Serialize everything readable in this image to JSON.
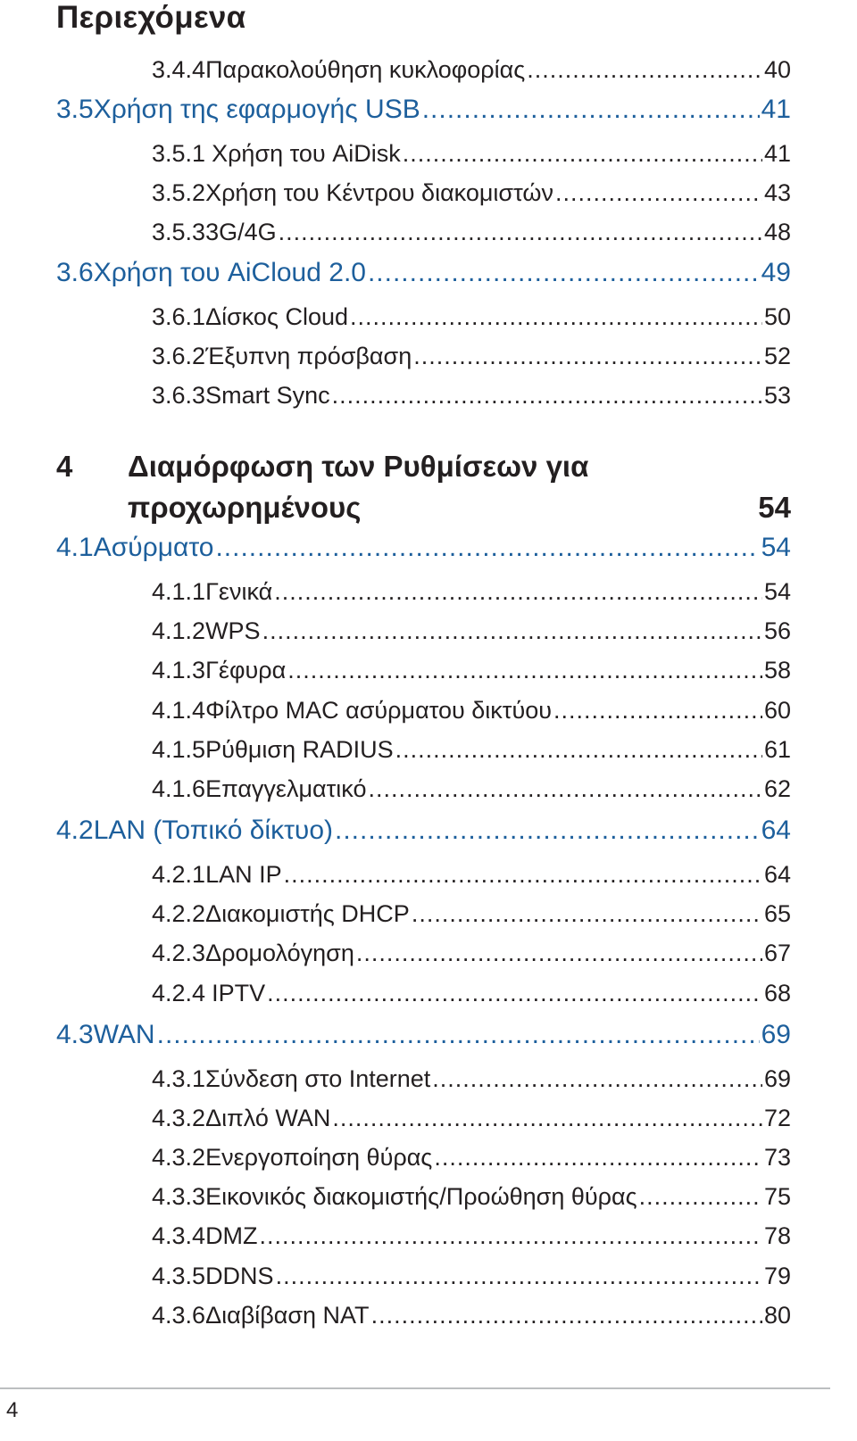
{
  "heading": "Περιεχόμενα",
  "entries": [
    {
      "level": "sub",
      "number": "3.4.4",
      "title": "Παρακολούθηση κυκλοφορίας",
      "page": "40"
    },
    {
      "level": "sec",
      "number": "3.5",
      "title": "Χρήση της εφαρμογής USB",
      "page": "41"
    },
    {
      "level": "sub",
      "number": "3.5.1",
      "title": "Χρήση του AiDisk",
      "page": "41"
    },
    {
      "level": "sub",
      "number": "3.5.2",
      "title": "Χρήση του Κέντρου διακομιστών",
      "page": "43"
    },
    {
      "level": "sub",
      "number": "3.5.3",
      "title": "3G/4G",
      "page": "48"
    },
    {
      "level": "sec",
      "number": "3.6",
      "title": "Χρήση του AiCloud 2.0",
      "page": "49"
    },
    {
      "level": "sub",
      "number": "3.6.1",
      "title": "Δίσκος Cloud",
      "page": "50"
    },
    {
      "level": "sub",
      "number": "3.6.2",
      "title": "Έξυπνη πρόσβαση",
      "page": "52"
    },
    {
      "level": "sub",
      "number": "3.6.3",
      "title": "Smart Sync",
      "page": "53"
    },
    {
      "level": "sec",
      "number": "4.1",
      "title": "Ασύρματο",
      "page": "54"
    },
    {
      "level": "sub",
      "number": "4.1.1",
      "title": "Γενικά",
      "page": "54"
    },
    {
      "level": "sub",
      "number": "4.1.2",
      "title": "WPS",
      "page": "56"
    },
    {
      "level": "sub",
      "number": "4.1.3",
      "title": "Γέφυρα",
      "page": "58"
    },
    {
      "level": "sub",
      "number": "4.1.4",
      "title": "Φίλτρο MAC ασύρματου δικτύου",
      "page": "60"
    },
    {
      "level": "sub",
      "number": "4.1.5",
      "title": "Ρύθμιση RADIUS",
      "page": "61"
    },
    {
      "level": "sub",
      "number": "4.1.6",
      "title": "Επαγγελματικό",
      "page": "62"
    },
    {
      "level": "sec",
      "number": "4.2",
      "title": "LAN (Τοπικό δίκτυο)",
      "page": "64"
    },
    {
      "level": "sub",
      "number": "4.2.1",
      "title": "LAN IP",
      "page": "64"
    },
    {
      "level": "sub",
      "number": "4.2.2",
      "title": "Διακομιστής DHCP",
      "page": "65"
    },
    {
      "level": "sub",
      "number": "4.2.3",
      "title": "Δρομολόγηση ",
      "page": "67"
    },
    {
      "level": "sub",
      "number": "4.2.4",
      "title": "IPTV",
      "page": "68"
    },
    {
      "level": "sec",
      "number": "4.3",
      "title": "WAN",
      "page": "69"
    },
    {
      "level": "sub",
      "number": "4.3.1",
      "title": "Σύνδεση στο Internet",
      "page": "69"
    },
    {
      "level": "sub",
      "number": "4.3.2",
      "title": "Διπλό WAN",
      "page": "72"
    },
    {
      "level": "sub",
      "number": "4.3.2",
      "title": "Ενεργοποίηση θύρας",
      "page": "73"
    },
    {
      "level": "sub",
      "number": "4.3.3",
      "title": "Εικονικός διακομιστής/Προώθηση θύρας",
      "page": "75"
    },
    {
      "level": "sub",
      "number": "4.3.4",
      "title": "DMZ",
      "page": "78"
    },
    {
      "level": "sub",
      "number": "4.3.5",
      "title": "DDNS",
      "page": "79"
    },
    {
      "level": "sub",
      "number": "4.3.6",
      "title": "Διαβίβαση NAT",
      "page": "80"
    }
  ],
  "chapter": {
    "number": "4",
    "title_line1": "Διαμόρφωση των Ρυθμίσεων για",
    "title_line2": "προχωρημένους",
    "page": "54"
  },
  "footer": {
    "page_number": "4"
  },
  "colors": {
    "section_blue": "#1d5f9c",
    "text": "#231f20",
    "rule": "#bcbec0"
  }
}
